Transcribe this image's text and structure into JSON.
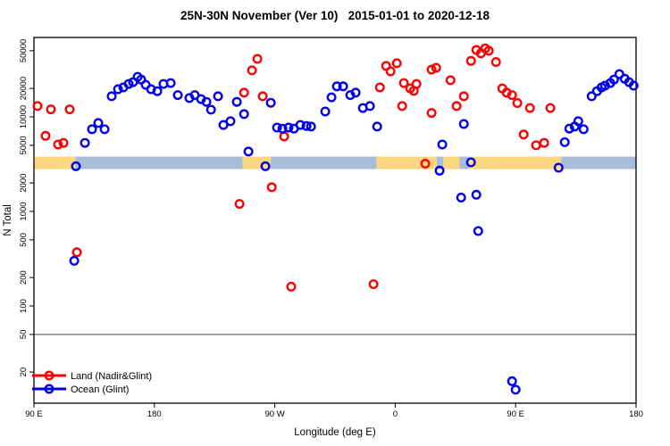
{
  "title": "25N-30N November (Ver 10)   2015-01-01 to 2020-12-18",
  "colors": {
    "land_marker": "#ff0000",
    "ocean_marker": "#0000ee",
    "land_band": "#fbd87f",
    "ocean_band": "#a8bdd9",
    "reference_line": "#8c8c8c",
    "frame": "#000000"
  },
  "chart_data": {
    "type": "scatter",
    "title": "25N-30N November (Ver 10)   2015-01-01 to 2020-12-18",
    "xlabel": "Longitude (deg E)",
    "ylabel": "N Total",
    "x_axis": {
      "range": [
        90,
        540
      ],
      "ticks": [
        90,
        180,
        270,
        360,
        450,
        540
      ],
      "tick_labels": [
        "90 E",
        "180",
        "90 W",
        "0",
        "90 E",
        "180"
      ]
    },
    "y_axis": {
      "scale": "log",
      "ticks": [
        20,
        50,
        100,
        200,
        500,
        1000,
        2000,
        5000,
        10000,
        20000,
        50000
      ],
      "tick_labels": [
        "20",
        "50",
        "100",
        "200",
        "500",
        "1000",
        "2000",
        "5000",
        "10000",
        "20000",
        "50000"
      ],
      "range": [
        12,
        62000
      ]
    },
    "grid": false,
    "reference_line": {
      "y": 50
    },
    "surface_band": {
      "value_range": [
        2800,
        3800
      ],
      "segments": [
        {
          "from": 90,
          "to": 121,
          "surface": "land"
        },
        {
          "from": 121,
          "to": 246,
          "surface": "ocean"
        },
        {
          "from": 246,
          "to": 267,
          "surface": "land"
        },
        {
          "from": 267,
          "to": 346,
          "surface": "ocean"
        },
        {
          "from": 346,
          "to": 391,
          "surface": "land"
        },
        {
          "from": 391,
          "to": 396,
          "surface": "ocean"
        },
        {
          "from": 396,
          "to": 408,
          "surface": "land"
        },
        {
          "from": 408,
          "to": 415,
          "surface": "ocean"
        },
        {
          "from": 415,
          "to": 484,
          "surface": "land"
        },
        {
          "from": 484,
          "to": 540,
          "surface": "ocean"
        }
      ]
    },
    "legend": {
      "position": "bottom-left"
    },
    "series": [
      {
        "name": "Land (Nadir&Glint)",
        "color": "#ff0000",
        "points": [
          [
            92.7,
            13000
          ],
          [
            102.7,
            12000
          ],
          [
            116.7,
            12000
          ],
          [
            98.7,
            6300
          ],
          [
            108,
            5100
          ],
          [
            112,
            5300
          ],
          [
            122.1,
            370
          ],
          [
            243.6,
            1200
          ],
          [
            247,
            18000
          ],
          [
            253,
            31000
          ],
          [
            257,
            41000
          ],
          [
            261,
            16500
          ],
          [
            267.7,
            1800
          ],
          [
            277,
            6200
          ],
          [
            282.3,
            160
          ],
          [
            343.8,
            170
          ],
          [
            348.5,
            20500
          ],
          [
            353.2,
            34600
          ],
          [
            356.5,
            30300
          ],
          [
            361.2,
            36900
          ],
          [
            365.2,
            13000
          ],
          [
            366.5,
            22800
          ],
          [
            371.2,
            20000
          ],
          [
            373.9,
            18800
          ],
          [
            375.9,
            22300
          ],
          [
            382.5,
            3200
          ],
          [
            387.2,
            31600
          ],
          [
            390.6,
            33000
          ],
          [
            387.2,
            11000
          ],
          [
            401.3,
            24400
          ],
          [
            405.9,
            13000
          ],
          [
            411.3,
            16500
          ],
          [
            416.6,
            39000
          ],
          [
            420.6,
            51000
          ],
          [
            424,
            47000
          ],
          [
            427.3,
            53000
          ],
          [
            430,
            50000
          ],
          [
            435.3,
            38000
          ],
          [
            440,
            20000
          ],
          [
            443.3,
            18000
          ],
          [
            447.3,
            17000
          ],
          [
            451.3,
            14000
          ],
          [
            456,
            6500
          ],
          [
            460.7,
            12400
          ],
          [
            465.3,
            5000
          ],
          [
            471.3,
            5300
          ],
          [
            476,
            12400
          ]
        ]
      },
      {
        "name": "Ocean (Glint)",
        "color": "#0000ee",
        "points": [
          [
            120.1,
            300
          ],
          [
            121.4,
            3000
          ],
          [
            128.1,
            5300
          ],
          [
            133.4,
            7400
          ],
          [
            138.1,
            8600
          ],
          [
            142.8,
            7400
          ],
          [
            148.1,
            16500
          ],
          [
            152.8,
            19600
          ],
          [
            156.8,
            20500
          ],
          [
            160.8,
            22300
          ],
          [
            164.1,
            23300
          ],
          [
            167.5,
            26500
          ],
          [
            170.1,
            24800
          ],
          [
            173.5,
            21800
          ],
          [
            177.5,
            19600
          ],
          [
            182.2,
            18700
          ],
          [
            186.8,
            22300
          ],
          [
            192.2,
            22800
          ],
          [
            197.5,
            17000
          ],
          [
            206.2,
            15800
          ],
          [
            210.2,
            17000
          ],
          [
            214.9,
            15400
          ],
          [
            218.9,
            14400
          ],
          [
            222.3,
            11900
          ],
          [
            227.6,
            16500
          ],
          [
            231.6,
            8200
          ],
          [
            236.9,
            9000
          ],
          [
            241.6,
            14400
          ],
          [
            247,
            10700
          ],
          [
            250.3,
            4300
          ],
          [
            263,
            3000
          ],
          [
            267,
            14100
          ],
          [
            271.7,
            7700
          ],
          [
            275.7,
            7500
          ],
          [
            280.3,
            7700
          ],
          [
            284.3,
            7500
          ],
          [
            289.1,
            8200
          ],
          [
            293.7,
            8000
          ],
          [
            297.1,
            7900
          ],
          [
            307.7,
            11400
          ],
          [
            312.4,
            16100
          ],
          [
            316.4,
            21000
          ],
          [
            321.1,
            21000
          ],
          [
            326.4,
            17000
          ],
          [
            330.4,
            18000
          ],
          [
            335.8,
            12400
          ],
          [
            341.1,
            13000
          ],
          [
            346.5,
            7900
          ],
          [
            393.2,
            2700
          ],
          [
            395.2,
            5100
          ],
          [
            409.3,
            1400
          ],
          [
            411.3,
            8400
          ],
          [
            416.6,
            3300
          ],
          [
            420.6,
            1500
          ],
          [
            422,
            620
          ],
          [
            447.3,
            16
          ],
          [
            450,
            13
          ],
          [
            482.1,
            2900
          ],
          [
            486.7,
            5400
          ],
          [
            490.1,
            7500
          ],
          [
            494.1,
            7900
          ],
          [
            496.8,
            9000
          ],
          [
            500.8,
            7400
          ],
          [
            506.8,
            16500
          ],
          [
            510.8,
            18700
          ],
          [
            514.2,
            20500
          ],
          [
            516.8,
            21400
          ],
          [
            520.8,
            22800
          ],
          [
            523.5,
            24800
          ],
          [
            527.5,
            28300
          ],
          [
            531.5,
            25300
          ],
          [
            534.8,
            23300
          ],
          [
            538.2,
            21400
          ]
        ]
      }
    ]
  }
}
